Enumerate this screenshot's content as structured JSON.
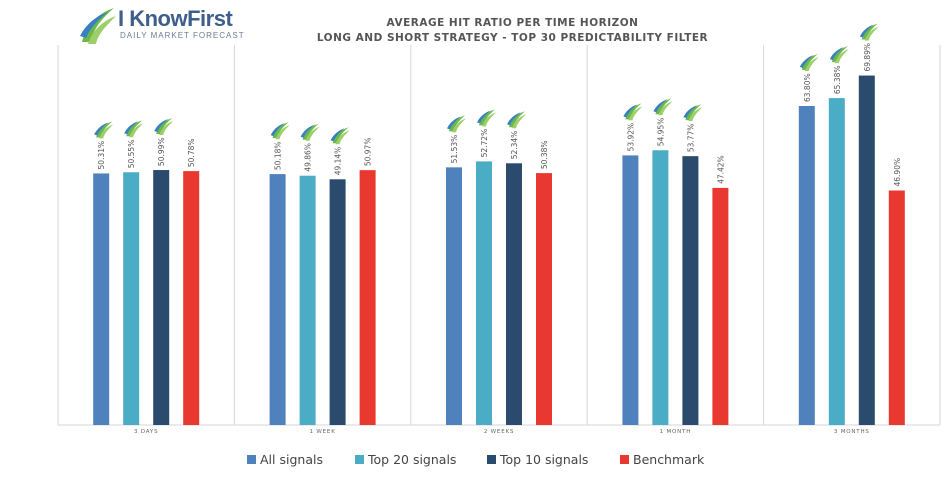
{
  "logo": {
    "name": "I KnowFirst",
    "tagline": "DAILY MARKET FORECAST"
  },
  "colors": {
    "All signals": "#4f81bd",
    "Top 20 signals": "#4bacc6",
    "Top 10 signals": "#2a4a6e",
    "Benchmark": "#e8382f",
    "grid": "#d6d6d6",
    "label": "#555555"
  },
  "chart_data": {
    "type": "bar",
    "title": "AVERAGE HIT RATIO PER TIME HORIZON",
    "subtitle": "LONG AND SHORT STRATEGY - TOP 30 PREDICTABILITY FILTER",
    "categories": [
      "3 DAYS",
      "1 WEEK",
      "2 WEEKS",
      "1 MONTH",
      "3 MONTHS"
    ],
    "series": [
      {
        "name": "All signals",
        "values": [
          50.31,
          50.18,
          51.53,
          53.92,
          63.8
        ],
        "labels": [
          "50.31%",
          "50.18%",
          "51.53%",
          "53.92%",
          "63.80%"
        ]
      },
      {
        "name": "Top 20 signals",
        "values": [
          50.55,
          49.86,
          52.72,
          54.95,
          65.38
        ],
        "labels": [
          "50.55%",
          "49.86%",
          "52.72%",
          "54.95%",
          "65.38%"
        ]
      },
      {
        "name": "Top 10 signals",
        "values": [
          50.99,
          49.14,
          52.34,
          53.77,
          69.89
        ],
        "labels": [
          "50.99%",
          "49.14%",
          "52.34%",
          "53.77%",
          "69.89%"
        ]
      },
      {
        "name": "Benchmark",
        "values": [
          50.78,
          50.97,
          50.38,
          47.42,
          46.9
        ],
        "labels": [
          "50.78%",
          "50.97%",
          "50.38%",
          "47.42%",
          "46.90%"
        ]
      }
    ],
    "logo_marks_on_series": [
      "All signals",
      "Top 20 signals",
      "Top 10 signals"
    ],
    "ylim": [
      0,
      76
    ],
    "grid": "vertical category separators",
    "legend": "bottom"
  }
}
